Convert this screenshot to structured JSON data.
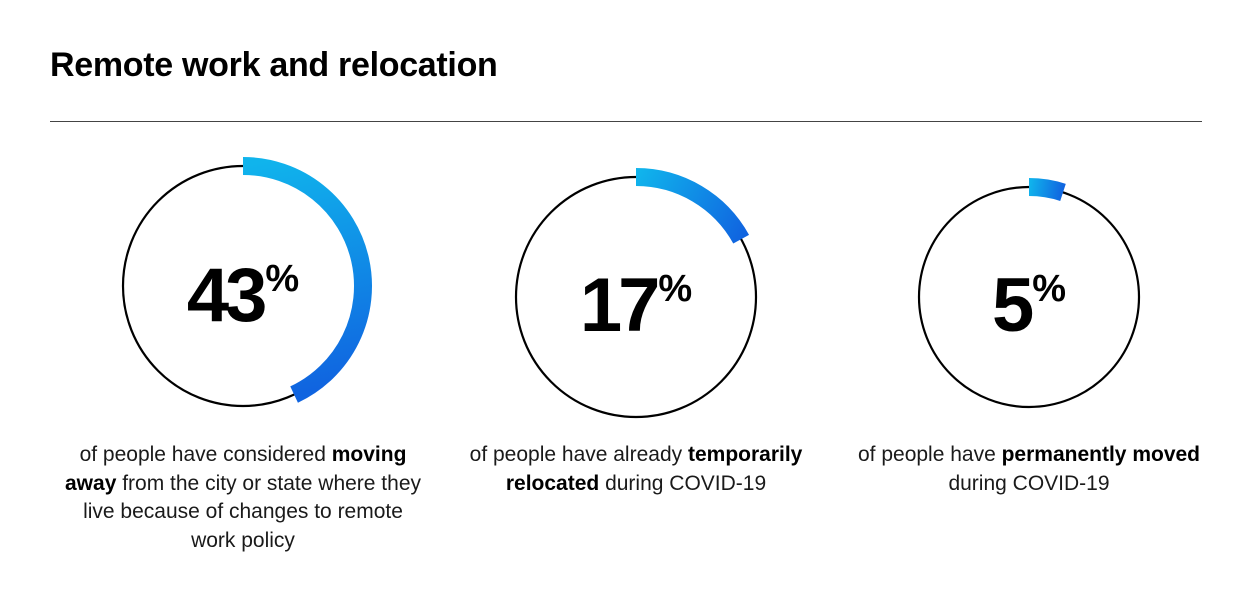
{
  "chart_data": {
    "type": "radial-progress",
    "title": "Remote work and relocation",
    "max": 100,
    "unit": "%",
    "items": [
      {
        "value": 43,
        "caption_before": "of people have considered ",
        "caption_bold": "moving away",
        "caption_after": " from the city or state where they live because of changes to remote work policy"
      },
      {
        "value": 17,
        "caption_before": "of people have already ",
        "caption_bold": "temporarily relocated",
        "caption_after": " during COVID-19"
      },
      {
        "value": 5,
        "caption_before": "of people have ",
        "caption_bold": "permanently moved",
        "caption_after": " during COVID-19"
      }
    ]
  },
  "colors": {
    "ring": "#000000",
    "arc_start": "#10b4ec",
    "arc_end": "#1064e0"
  }
}
